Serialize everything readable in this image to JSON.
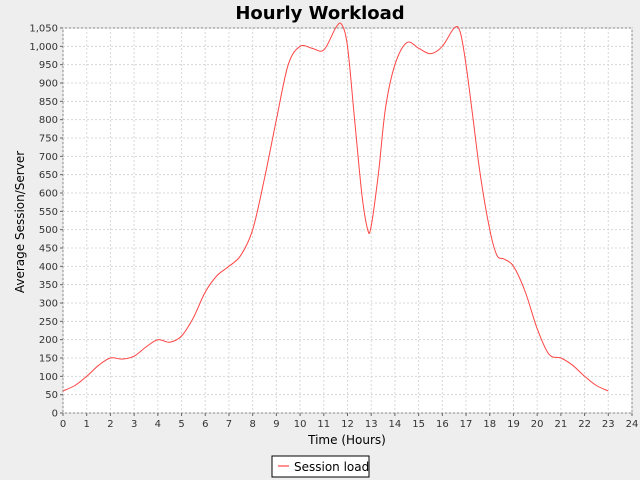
{
  "chart_data": {
    "type": "line",
    "title": "Hourly Workload",
    "xlabel": "Time (Hours)",
    "ylabel": "Average Session/Server",
    "xlim": [
      0,
      24
    ],
    "ylim": [
      0,
      1050
    ],
    "x_ticks": [
      "0",
      "1",
      "2",
      "3",
      "4",
      "5",
      "6",
      "7",
      "8",
      "9",
      "10",
      "11",
      "12",
      "13",
      "14",
      "15",
      "16",
      "17",
      "18",
      "19",
      "20",
      "21",
      "22",
      "23",
      "24"
    ],
    "y_ticks": [
      "0",
      "50",
      "100",
      "150",
      "200",
      "250",
      "300",
      "350",
      "400",
      "450",
      "500",
      "550",
      "600",
      "650",
      "700",
      "750",
      "800",
      "850",
      "900",
      "950",
      "1,000",
      "1,050"
    ],
    "grid": true,
    "legend_position": "bottom",
    "series": [
      {
        "name": "Session load",
        "color": "#ff4444",
        "points": [
          [
            0,
            60
          ],
          [
            0.5,
            75
          ],
          [
            1,
            100
          ],
          [
            1.5,
            130
          ],
          [
            2,
            150
          ],
          [
            2.5,
            147
          ],
          [
            3,
            155
          ],
          [
            3.5,
            180
          ],
          [
            4,
            200
          ],
          [
            4.5,
            193
          ],
          [
            5,
            210
          ],
          [
            5.5,
            260
          ],
          [
            6,
            330
          ],
          [
            6.5,
            375
          ],
          [
            7,
            400
          ],
          [
            7.5,
            430
          ],
          [
            8,
            500
          ],
          [
            8.5,
            640
          ],
          [
            9,
            800
          ],
          [
            9.5,
            950
          ],
          [
            10,
            1000
          ],
          [
            10.5,
            995
          ],
          [
            11,
            990
          ],
          [
            11.5,
            1050
          ],
          [
            11.75,
            1060
          ],
          [
            12,
            1000
          ],
          [
            12.3,
            800
          ],
          [
            12.6,
            600
          ],
          [
            12.85,
            500
          ],
          [
            13,
            510
          ],
          [
            13.3,
            650
          ],
          [
            13.6,
            830
          ],
          [
            14,
            950
          ],
          [
            14.5,
            1010
          ],
          [
            15,
            995
          ],
          [
            15.5,
            980
          ],
          [
            16,
            1000
          ],
          [
            16.5,
            1050
          ],
          [
            16.75,
            1040
          ],
          [
            17,
            950
          ],
          [
            17.3,
            800
          ],
          [
            17.6,
            650
          ],
          [
            18,
            500
          ],
          [
            18.3,
            430
          ],
          [
            18.6,
            420
          ],
          [
            19,
            400
          ],
          [
            19.5,
            330
          ],
          [
            20,
            230
          ],
          [
            20.5,
            160
          ],
          [
            21,
            150
          ],
          [
            21.5,
            130
          ],
          [
            22,
            100
          ],
          [
            22.5,
            75
          ],
          [
            23,
            60
          ]
        ]
      }
    ]
  }
}
